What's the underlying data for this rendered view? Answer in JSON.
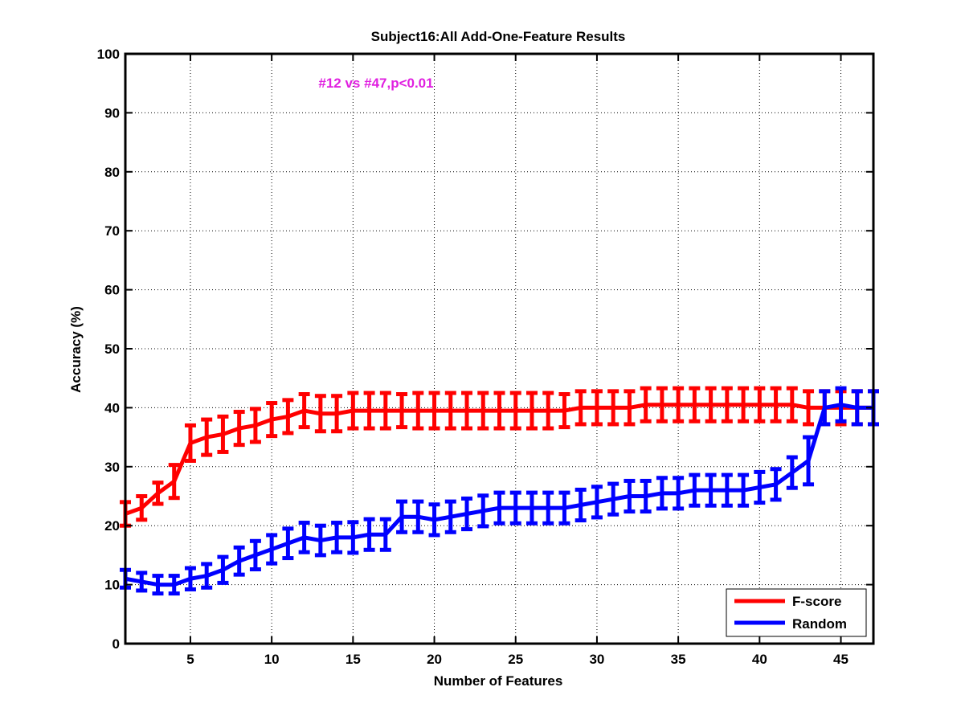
{
  "chart_data": {
    "type": "line",
    "title": "Subject16:All Add-One-Feature Results",
    "xlabel": "Number of Features",
    "ylabel": "Accuracy (%)",
    "xlim": [
      1,
      47
    ],
    "ylim": [
      0,
      100
    ],
    "xticks": [
      5,
      10,
      15,
      20,
      25,
      30,
      35,
      40,
      45
    ],
    "yticks": [
      0,
      10,
      20,
      30,
      40,
      50,
      60,
      70,
      80,
      90,
      100
    ],
    "grid": true,
    "legend_position": "bottom-right",
    "annotation": "#12 vs #47,p<0.01",
    "annotation_color": "#e020e0",
    "x": [
      1,
      2,
      3,
      4,
      5,
      6,
      7,
      8,
      9,
      10,
      11,
      12,
      13,
      14,
      15,
      16,
      17,
      18,
      19,
      20,
      21,
      22,
      23,
      24,
      25,
      26,
      27,
      28,
      29,
      30,
      31,
      32,
      33,
      34,
      35,
      36,
      37,
      38,
      39,
      40,
      41,
      42,
      43,
      44,
      45,
      46,
      47
    ],
    "series": [
      {
        "name": "F-score",
        "color": "#ff0000",
        "values": [
          22.0,
          23.0,
          25.5,
          27.5,
          34.0,
          35.0,
          35.5,
          36.5,
          37.0,
          38.0,
          38.5,
          39.5,
          39.0,
          39.0,
          39.5,
          39.5,
          39.5,
          39.5,
          39.5,
          39.5,
          39.5,
          39.5,
          39.5,
          39.5,
          39.5,
          39.5,
          39.5,
          39.5,
          40.0,
          40.0,
          40.0,
          40.0,
          40.5,
          40.5,
          40.5,
          40.5,
          40.5,
          40.5,
          40.5,
          40.5,
          40.5,
          40.5,
          40.0,
          40.0,
          40.0,
          40.0,
          40.0
        ],
        "errors": [
          2.0,
          2.0,
          1.8,
          2.8,
          3.0,
          3.0,
          3.0,
          2.8,
          2.8,
          2.8,
          2.8,
          2.8,
          3.0,
          3.0,
          3.0,
          3.0,
          3.0,
          2.8,
          3.0,
          3.0,
          3.0,
          3.0,
          3.0,
          3.0,
          3.0,
          3.0,
          3.0,
          2.8,
          2.8,
          2.8,
          2.8,
          2.8,
          2.8,
          2.8,
          2.8,
          2.8,
          2.8,
          2.8,
          2.8,
          2.8,
          2.8,
          2.8,
          2.8,
          2.8,
          2.8,
          2.8,
          2.8
        ]
      },
      {
        "name": "Random",
        "color": "#0000ff",
        "values": [
          11.0,
          10.5,
          10.0,
          10.0,
          11.0,
          11.5,
          12.5,
          14.0,
          15.0,
          16.0,
          17.0,
          18.0,
          17.5,
          18.0,
          18.0,
          18.5,
          18.5,
          21.5,
          21.5,
          21.0,
          21.5,
          22.0,
          22.5,
          23.0,
          23.0,
          23.0,
          23.0,
          23.0,
          23.5,
          24.0,
          24.5,
          25.0,
          25.0,
          25.5,
          25.5,
          26.0,
          26.0,
          26.0,
          26.0,
          26.5,
          27.0,
          29.0,
          31.0,
          40.0,
          40.5,
          40.0,
          40.0
        ],
        "errors": [
          1.5,
          1.5,
          1.5,
          1.5,
          1.8,
          2.0,
          2.2,
          2.3,
          2.4,
          2.4,
          2.5,
          2.5,
          2.5,
          2.5,
          2.6,
          2.6,
          2.6,
          2.6,
          2.6,
          2.6,
          2.6,
          2.6,
          2.6,
          2.6,
          2.6,
          2.6,
          2.6,
          2.6,
          2.6,
          2.6,
          2.6,
          2.6,
          2.6,
          2.6,
          2.6,
          2.6,
          2.6,
          2.6,
          2.6,
          2.6,
          2.6,
          2.6,
          4.0,
          2.8,
          2.8,
          2.8,
          2.8
        ]
      }
    ]
  }
}
